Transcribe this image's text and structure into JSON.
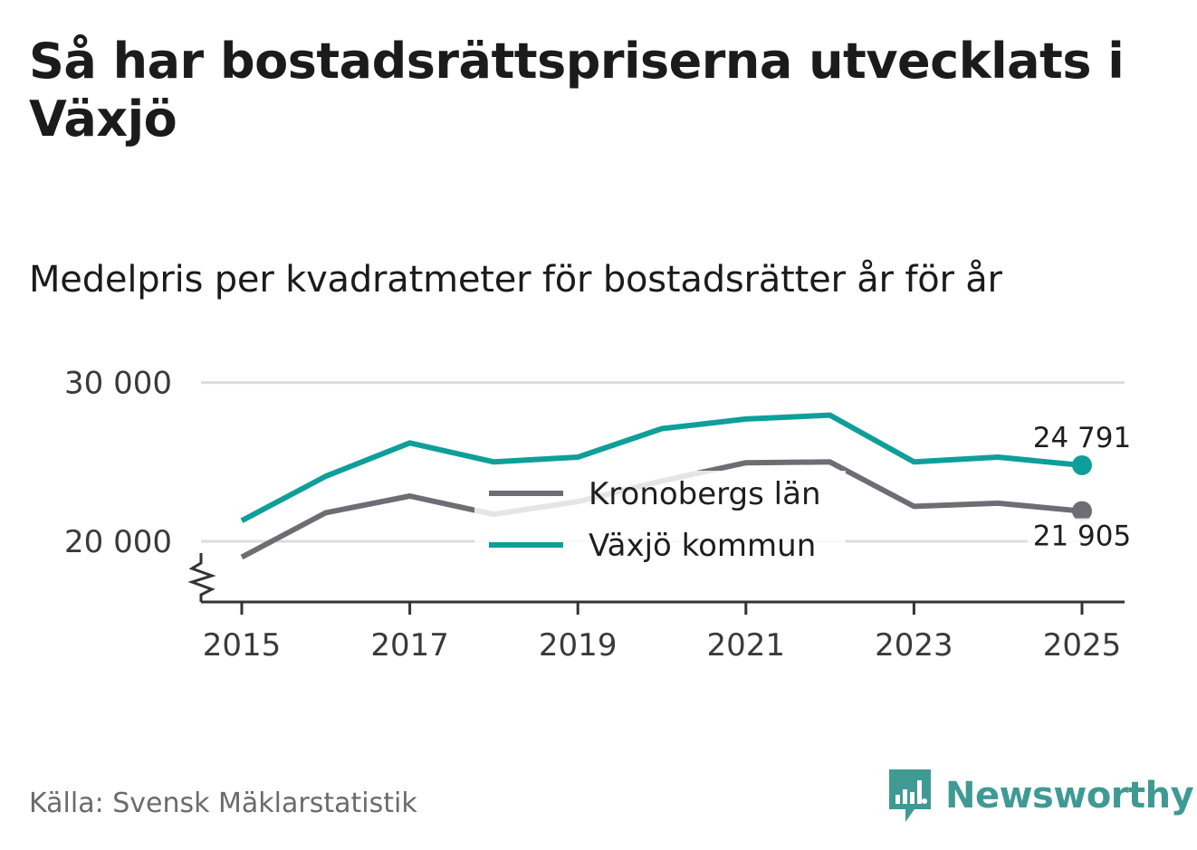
{
  "title": "Så har bostadsrättspriserna utvecklats i Växjö",
  "subtitle": "Medelpris per kvadratmeter för bostadsrätter år för år",
  "source": "Källa: Svensk Mäklarstatistik",
  "brand": {
    "name": "Newsworthy",
    "icon": "newsworthy-logo-icon",
    "color": "#3f9a94"
  },
  "chart_data": {
    "type": "line",
    "x": [
      2015,
      2016,
      2017,
      2018,
      2019,
      2020,
      2021,
      2022,
      2023,
      2024,
      2025
    ],
    "series": [
      {
        "name": "Kronobergs län",
        "color": "#6e6d73",
        "values": [
          19000,
          21800,
          22850,
          21700,
          22500,
          23800,
          24950,
          25000,
          22200,
          22400,
          21905
        ],
        "end_label": "21 905"
      },
      {
        "name": "Växjö kommun",
        "color": "#0e9f9a",
        "values": [
          21300,
          24100,
          26200,
          25000,
          25300,
          27100,
          27700,
          27950,
          25000,
          25300,
          24791
        ],
        "end_label": "24 791"
      }
    ],
    "yticks": [
      20000,
      30000
    ],
    "ytick_labels": [
      "20 000",
      "30 000"
    ],
    "xticks": [
      2015,
      2017,
      2019,
      2021,
      2023,
      2025
    ],
    "xtick_labels": [
      "2015",
      "2017",
      "2019",
      "2021",
      "2023",
      "2025"
    ],
    "ylim": [
      16200,
      30000
    ],
    "xlim": [
      2014.75,
      2025.25
    ],
    "axis_break": true,
    "grid": true,
    "legend": [
      "Kronobergs län",
      "Växjö kommun"
    ],
    "legend_position": "center"
  }
}
